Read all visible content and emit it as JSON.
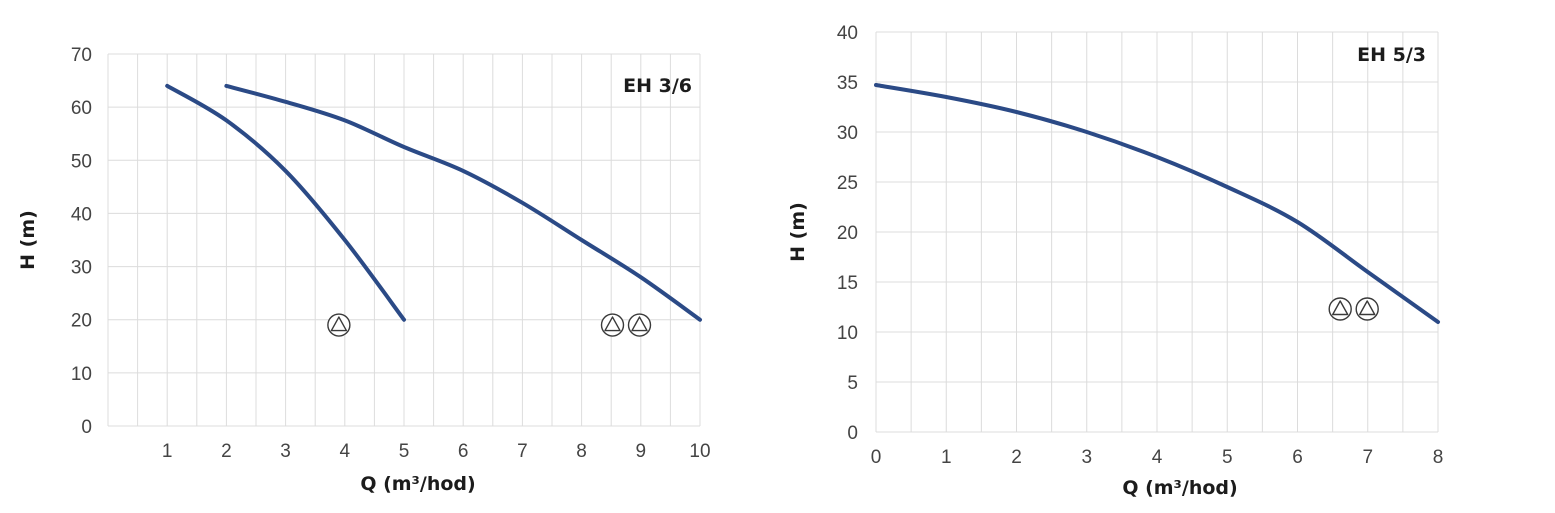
{
  "chart_data": [
    {
      "type": "line",
      "title": "EH 3/6",
      "xlabel": "Q (m³/hod)",
      "ylabel": "H (m)",
      "xlim": [
        0,
        10
      ],
      "ylim": [
        0,
        70
      ],
      "x_ticks": [
        1,
        2,
        3,
        4,
        5,
        6,
        7,
        8,
        9,
        10
      ],
      "y_ticks": [
        0,
        10,
        20,
        30,
        40,
        50,
        60,
        70
      ],
      "grid": true,
      "series": [
        {
          "x": [
            1,
            2,
            3,
            4,
            5
          ],
          "y": [
            64,
            57.5,
            48,
            35,
            20
          ]
        },
        {
          "x": [
            2,
            3,
            4,
            5,
            6,
            7,
            8,
            9,
            10
          ],
          "y": [
            64,
            61,
            57.5,
            52.5,
            48,
            42,
            35,
            28,
            20
          ]
        }
      ],
      "pump_markers": [
        {
          "count": 1,
          "x": 3.9,
          "y": 19
        },
        {
          "count": 2,
          "x": 8.75,
          "y": 19
        }
      ],
      "line_color": "#2b4a86"
    },
    {
      "type": "line",
      "title": "EH 5/3",
      "xlabel": "Q (m³/hod)",
      "ylabel": "H (m)",
      "xlim": [
        0,
        8
      ],
      "ylim": [
        0,
        40
      ],
      "x_ticks": [
        0,
        1,
        2,
        3,
        4,
        5,
        6,
        7,
        8
      ],
      "y_ticks": [
        0,
        5,
        10,
        15,
        20,
        25,
        30,
        35,
        40
      ],
      "grid": true,
      "series": [
        {
          "x": [
            0,
            1,
            2,
            3,
            4,
            5,
            6,
            7,
            8
          ],
          "y": [
            34.7,
            33.5,
            32,
            30,
            27.5,
            24.5,
            21,
            16,
            11
          ]
        }
      ],
      "pump_markers": [
        {
          "count": 2,
          "x": 6.8,
          "y": 12.3
        }
      ],
      "line_color": "#2b4a86"
    }
  ]
}
